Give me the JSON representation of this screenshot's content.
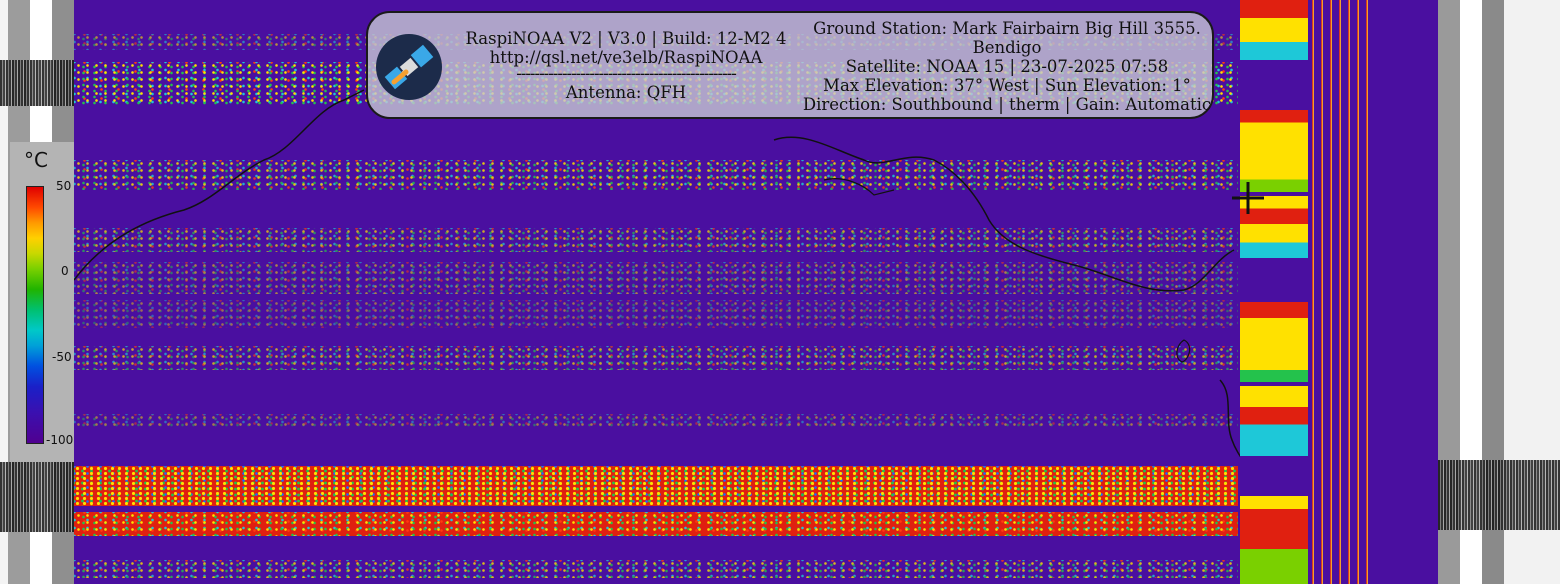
{
  "header": {
    "line1": "RaspiNOAA V2 | V3.0 | Build: 12-M2 4",
    "line2": "http://qsl.net/ve3elb/RaspiNOAA",
    "divider": "------------------------------------------------",
    "antenna": "Antenna: QFH",
    "ground_station": "Ground Station: Mark Fairbairn Big Hill 3555.",
    "ground_station_cont": "Bendigo",
    "satellite": "Satellite: NOAA 15 | 23-07-2025 07:58",
    "elevation": "Max Elevation: 37° West | Sun Elevation: 1°",
    "direction": "Direction: Southbound | therm | Gain: Automatic"
  },
  "legend": {
    "unit": "°C",
    "ticks": [
      "50",
      "0",
      "-50",
      "-100"
    ]
  },
  "colors": {
    "background_purple": "#4a0fa0",
    "panel": "#c4c4d2",
    "hot": "#e02010",
    "warm": "#ffe100"
  },
  "icons": {
    "logo": "satellite-icon",
    "marker": "crosshair-icon"
  }
}
